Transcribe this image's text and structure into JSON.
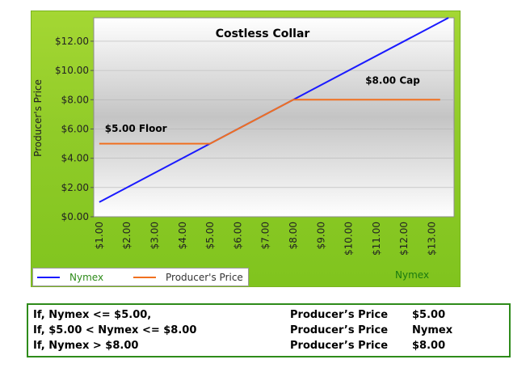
{
  "chart_data": {
    "type": "line",
    "title": "Costless Collar",
    "ylabel": "Producer's Price",
    "xlabel": "Nymex",
    "x_ticks": [
      "$1.00",
      "$2.00",
      "$3.00",
      "$4.00",
      "$5.00",
      "$6.00",
      "$7.00",
      "$8.00",
      "$9.00",
      "$10.00",
      "$11.00",
      "$12.00",
      "$13.00"
    ],
    "y_ticks": [
      "$0.00",
      "$2.00",
      "$4.00",
      "$6.00",
      "$8.00",
      "$10.00",
      "$12.00"
    ],
    "xlim": [
      0.8,
      13.8
    ],
    "ylim": [
      0,
      13.6
    ],
    "grid": true,
    "legend_position": "bottom-left",
    "series": [
      {
        "name": "Nymex",
        "color": "#1a1aff",
        "x": [
          1,
          13.6
        ],
        "y": [
          1,
          13.6
        ]
      },
      {
        "name": "Producer's Price",
        "color": "#f07020",
        "x": [
          1,
          5,
          8,
          13.3
        ],
        "y": [
          5,
          5,
          8,
          8
        ]
      }
    ],
    "annotations": [
      {
        "text": "$5.00 Floor",
        "x": 1.2,
        "y": 5.8
      },
      {
        "text": "$8.00 Cap",
        "x": 10.6,
        "y": 9.1
      }
    ]
  },
  "rules": [
    {
      "condition": "If, Nymex <= $5.00,",
      "label": "Producer’s Price",
      "value": "$5.00"
    },
    {
      "condition": "If, $5.00 < Nymex <= $8.00",
      "label": "Producer’s Price",
      "value": "Nymex"
    },
    {
      "condition": "If, Nymex > $8.00",
      "label": "Producer’s Price",
      "value": "$8.00"
    }
  ]
}
